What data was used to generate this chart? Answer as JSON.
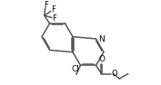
{
  "bg_color": "#ffffff",
  "bond_color": "#555555",
  "text_color": "#000000",
  "bond_width": 1.1,
  "font_size": 6.5,
  "figsize": [
    1.77,
    0.94
  ],
  "dpi": 100,
  "xlim": [
    0,
    10
  ],
  "ylim": [
    0,
    5.3
  ]
}
